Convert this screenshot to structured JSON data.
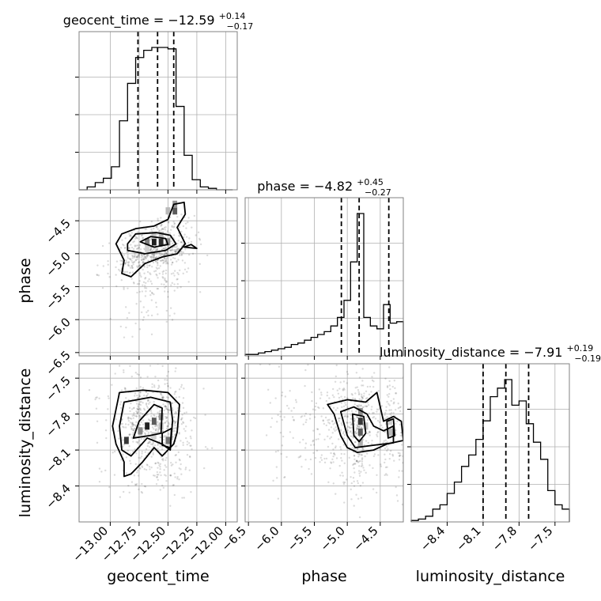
{
  "chart_data": {
    "type": "corner",
    "parameters": [
      "geocent_time",
      "phase",
      "luminosity_distance"
    ],
    "axis_labels": {
      "geocent_time": "geocent_time",
      "phase": "phase",
      "luminosity_distance": "luminosity_distance"
    },
    "ranges": {
      "geocent_time": [
        -13.27,
        -11.9
      ],
      "phase": [
        -6.55,
        -4.15
      ],
      "luminosity_distance": [
        -8.7,
        -7.38
      ]
    },
    "ticks": {
      "geocent_time": [
        -13.0,
        -12.75,
        -12.5,
        -12.25,
        -12.0
      ],
      "phase": [
        -6.5,
        -6.0,
        -5.5,
        -5.0,
        -4.5
      ],
      "luminosity_distance": [
        -8.4,
        -8.1,
        -7.8,
        -7.5
      ]
    },
    "tick_labels": {
      "geocent_time": [
        "−13.00",
        "−12.75",
        "−12.50",
        "−12.25",
        "−12.00"
      ],
      "phase": [
        "−6.5",
        "−6.0",
        "−5.5",
        "−5.0",
        "−4.5"
      ],
      "luminosity_distance": [
        "−8.4",
        "−8.1",
        "−7.8",
        "−7.5"
      ]
    },
    "titles": {
      "geocent_time": {
        "name": "geocent_time",
        "median": "−12.59",
        "plus": "+0.14",
        "minus": "−0.17"
      },
      "phase": {
        "name": "phase",
        "median": "−4.82",
        "plus": "+0.45",
        "minus": "−0.27"
      },
      "luminosity_distance": {
        "name": "luminosity_distance",
        "median": "−7.91",
        "plus": "+0.19",
        "minus": "−0.19"
      }
    },
    "quantiles": {
      "geocent_time": [
        -12.76,
        -12.59,
        -12.45
      ],
      "phase": [
        -5.09,
        -4.82,
        -4.37
      ],
      "luminosity_distance": [
        -8.1,
        -7.91,
        -7.72
      ]
    },
    "histograms": {
      "geocent_time": {
        "edges": [
          -13.27,
          -13.2,
          -13.13,
          -13.06,
          -12.99,
          -12.92,
          -12.85,
          -12.78,
          -12.71,
          -12.64,
          -12.57,
          -12.5,
          -12.43,
          -12.36,
          -12.29,
          -12.22,
          -12.15,
          -12.08,
          -12.01,
          -11.94
        ],
        "counts": [
          0.0,
          0.02,
          0.05,
          0.08,
          0.16,
          0.48,
          0.74,
          0.92,
          0.97,
          0.99,
          0.99,
          0.98,
          0.58,
          0.24,
          0.07,
          0.02,
          0.01,
          0.0,
          0.0
        ]
      },
      "phase": {
        "edges": [
          -6.55,
          -6.45,
          -6.35,
          -6.25,
          -6.15,
          -6.05,
          -5.95,
          -5.85,
          -5.75,
          -5.65,
          -5.55,
          -5.45,
          -5.35,
          -5.25,
          -5.15,
          -5.05,
          -4.95,
          -4.85,
          -4.75,
          -4.65,
          -4.55,
          -4.45,
          -4.35,
          -4.25,
          -4.15
        ],
        "counts": [
          0.01,
          0.01,
          0.02,
          0.03,
          0.04,
          0.05,
          0.06,
          0.08,
          0.09,
          0.11,
          0.13,
          0.15,
          0.17,
          0.21,
          0.27,
          0.39,
          0.66,
          1.0,
          0.27,
          0.21,
          0.19,
          0.36,
          0.23,
          0.24
        ]
      },
      "luminosity_distance": {
        "edges": [
          -8.7,
          -8.64,
          -8.58,
          -8.52,
          -8.46,
          -8.4,
          -8.34,
          -8.28,
          -8.22,
          -8.16,
          -8.1,
          -8.04,
          -7.98,
          -7.92,
          -7.86,
          -7.8,
          -7.74,
          -7.68,
          -7.62,
          -7.56,
          -7.5,
          -7.44,
          -7.38
        ],
        "counts": [
          0.01,
          0.02,
          0.04,
          0.09,
          0.12,
          0.2,
          0.28,
          0.39,
          0.47,
          0.58,
          0.71,
          0.88,
          0.94,
          1.0,
          0.82,
          0.85,
          0.69,
          0.56,
          0.44,
          0.22,
          0.12,
          0.09
        ]
      }
    },
    "pairs": [
      {
        "x": "geocent_time",
        "y": "phase",
        "cells": [
          {
            "x": -12.62,
            "y": -4.82,
            "v": 0.95
          },
          {
            "x": -12.56,
            "y": -4.82,
            "v": 0.9
          },
          {
            "x": -12.68,
            "y": -4.82,
            "v": 0.55
          },
          {
            "x": -12.5,
            "y": -4.82,
            "v": 0.5
          },
          {
            "x": -12.56,
            "y": -4.72,
            "v": 0.3
          },
          {
            "x": -12.62,
            "y": -4.72,
            "v": 0.25
          },
          {
            "x": -12.68,
            "y": -4.92,
            "v": 0.2
          },
          {
            "x": -12.44,
            "y": -4.35,
            "v": 0.7
          },
          {
            "x": -12.44,
            "y": -4.25,
            "v": 0.45
          },
          {
            "x": -12.5,
            "y": -4.35,
            "v": 0.3
          }
        ],
        "contours": [
          [
            [
              -12.95,
              -4.85
            ],
            [
              -12.9,
              -4.7
            ],
            [
              -12.78,
              -4.62
            ],
            [
              -12.62,
              -4.58
            ],
            [
              -12.5,
              -4.48
            ],
            [
              -12.45,
              -4.25
            ],
            [
              -12.36,
              -4.22
            ],
            [
              -12.35,
              -4.4
            ],
            [
              -12.42,
              -4.6
            ],
            [
              -12.35,
              -4.85
            ],
            [
              -12.42,
              -5.0
            ],
            [
              -12.55,
              -5.05
            ],
            [
              -12.7,
              -5.15
            ],
            [
              -12.82,
              -5.35
            ],
            [
              -12.9,
              -5.3
            ],
            [
              -12.88,
              -5.1
            ],
            [
              -12.95,
              -4.85
            ]
          ],
          [
            [
              -12.85,
              -4.85
            ],
            [
              -12.78,
              -4.7
            ],
            [
              -12.6,
              -4.68
            ],
            [
              -12.48,
              -4.72
            ],
            [
              -12.43,
              -4.85
            ],
            [
              -12.52,
              -4.95
            ],
            [
              -12.7,
              -5.0
            ],
            [
              -12.85,
              -4.95
            ],
            [
              -12.85,
              -4.85
            ]
          ],
          [
            [
              -12.74,
              -4.82
            ],
            [
              -12.65,
              -4.74
            ],
            [
              -12.52,
              -4.77
            ],
            [
              -12.5,
              -4.86
            ],
            [
              -12.62,
              -4.9
            ],
            [
              -12.74,
              -4.82
            ]
          ],
          [
            [
              -12.36,
              -4.9
            ],
            [
              -12.3,
              -4.86
            ],
            [
              -12.25,
              -4.92
            ],
            [
              -12.36,
              -4.9
            ]
          ]
        ]
      },
      {
        "x": "geocent_time",
        "y": "luminosity_distance",
        "cells": [
          {
            "x": -12.68,
            "y": -7.9,
            "v": 0.95
          },
          {
            "x": -12.62,
            "y": -7.86,
            "v": 0.7
          },
          {
            "x": -12.74,
            "y": -7.94,
            "v": 0.5
          },
          {
            "x": -12.86,
            "y": -8.02,
            "v": 0.85
          },
          {
            "x": -12.56,
            "y": -7.82,
            "v": 0.45
          },
          {
            "x": -12.5,
            "y": -8.02,
            "v": 0.6
          },
          {
            "x": -12.56,
            "y": -7.9,
            "v": 0.3
          },
          {
            "x": -12.62,
            "y": -7.98,
            "v": 0.2
          }
        ],
        "contours": [
          [
            [
              -12.92,
              -7.62
            ],
            [
              -12.72,
              -7.6
            ],
            [
              -12.5,
              -7.62
            ],
            [
              -12.4,
              -7.72
            ],
            [
              -12.42,
              -7.95
            ],
            [
              -12.45,
              -8.05
            ],
            [
              -12.55,
              -8.15
            ],
            [
              -12.62,
              -8.08
            ],
            [
              -12.72,
              -8.2
            ],
            [
              -12.82,
              -8.3
            ],
            [
              -12.88,
              -8.32
            ],
            [
              -12.88,
              -8.2
            ],
            [
              -12.95,
              -8.05
            ],
            [
              -12.98,
              -7.9
            ],
            [
              -12.92,
              -7.62
            ]
          ],
          [
            [
              -12.88,
              -7.7
            ],
            [
              -12.65,
              -7.66
            ],
            [
              -12.48,
              -7.7
            ],
            [
              -12.46,
              -7.85
            ],
            [
              -12.48,
              -8.1
            ],
            [
              -12.55,
              -8.05
            ],
            [
              -12.68,
              -8.0
            ],
            [
              -12.82,
              -8.15
            ],
            [
              -12.9,
              -8.1
            ],
            [
              -12.92,
              -7.9
            ],
            [
              -12.88,
              -7.7
            ]
          ],
          [
            [
              -12.75,
              -7.86
            ],
            [
              -12.62,
              -7.72
            ],
            [
              -12.55,
              -7.75
            ],
            [
              -12.56,
              -7.96
            ],
            [
              -12.66,
              -7.98
            ],
            [
              -12.8,
              -8.0
            ],
            [
              -12.75,
              -7.86
            ]
          ],
          [
            [
              -12.55,
              -7.96
            ],
            [
              -12.47,
              -7.92
            ],
            [
              -12.48,
              -8.08
            ],
            [
              -12.55,
              -8.06
            ],
            [
              -12.55,
              -7.96
            ]
          ]
        ]
      },
      {
        "x": "phase",
        "y": "luminosity_distance",
        "cells": [
          {
            "x": -4.8,
            "y": -7.86,
            "v": 0.85
          },
          {
            "x": -4.8,
            "y": -7.95,
            "v": 0.7
          },
          {
            "x": -4.8,
            "y": -7.78,
            "v": 0.5
          },
          {
            "x": -4.8,
            "y": -8.04,
            "v": 0.35
          },
          {
            "x": -4.72,
            "y": -7.9,
            "v": 0.25
          },
          {
            "x": -4.35,
            "y": -7.95,
            "v": 0.3
          },
          {
            "x": -4.35,
            "y": -7.86,
            "v": 0.2
          }
        ],
        "contours": [
          [
            [
              -5.3,
              -7.72
            ],
            [
              -5.0,
              -7.68
            ],
            [
              -4.72,
              -7.7
            ],
            [
              -4.55,
              -7.62
            ],
            [
              -4.5,
              -7.74
            ],
            [
              -4.45,
              -7.86
            ],
            [
              -4.3,
              -7.82
            ],
            [
              -4.18,
              -7.86
            ],
            [
              -4.15,
              -8.02
            ],
            [
              -4.4,
              -8.05
            ],
            [
              -4.6,
              -8.1
            ],
            [
              -4.85,
              -8.12
            ],
            [
              -5.0,
              -8.08
            ],
            [
              -5.1,
              -7.98
            ],
            [
              -5.2,
              -7.8
            ],
            [
              -5.3,
              -7.72
            ]
          ],
          [
            [
              -5.1,
              -7.78
            ],
            [
              -4.9,
              -7.74
            ],
            [
              -4.7,
              -7.8
            ],
            [
              -4.6,
              -7.9
            ],
            [
              -4.45,
              -7.94
            ],
            [
              -4.3,
              -7.9
            ],
            [
              -4.3,
              -8.04
            ],
            [
              -4.6,
              -8.06
            ],
            [
              -4.88,
              -8.08
            ],
            [
              -5.0,
              -7.98
            ],
            [
              -5.1,
              -7.78
            ]
          ],
          [
            [
              -4.92,
              -7.8
            ],
            [
              -4.75,
              -7.82
            ],
            [
              -4.72,
              -7.96
            ],
            [
              -4.82,
              -8.03
            ],
            [
              -4.9,
              -7.98
            ],
            [
              -4.92,
              -7.8
            ]
          ],
          [
            [
              -4.4,
              -7.86
            ],
            [
              -4.3,
              -7.84
            ],
            [
              -4.28,
              -7.98
            ],
            [
              -4.38,
              -8.0
            ],
            [
              -4.4,
              -7.86
            ]
          ]
        ]
      }
    ],
    "grid": true
  }
}
